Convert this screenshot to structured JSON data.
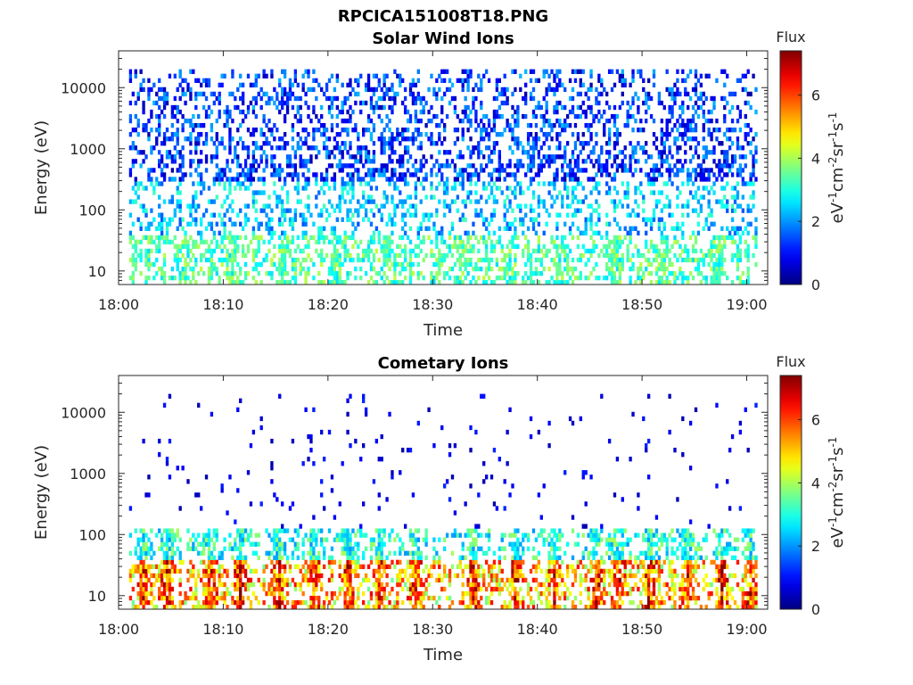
{
  "figure": {
    "suptitle": "RPCICA151008T18.PNG"
  },
  "colormap": "jet",
  "chart_data": [
    {
      "type": "heatmap",
      "title": "Solar Wind Ions",
      "xlabel": "Time",
      "ylabel": "Energy (eV)",
      "x_ticks": [
        "18:00",
        "18:10",
        "18:20",
        "18:30",
        "18:40",
        "18:50",
        "19:00"
      ],
      "x_range_minutes": [
        0,
        62
      ],
      "y_scale": "log",
      "y_ticks": [
        "10",
        "100",
        "1000",
        "10000"
      ],
      "y_tick_values": [
        10,
        100,
        1000,
        10000
      ],
      "ylim": [
        6,
        40000
      ],
      "colorbar": {
        "title": "Flux",
        "label_parts": [
          "eV",
          "-1",
          "cm",
          "-2",
          "sr",
          "-1",
          "s",
          "-1"
        ],
        "ticks": [
          "0",
          "2",
          "4",
          "6"
        ],
        "range": [
          0,
          7.4
        ]
      },
      "description_pattern": "sw",
      "bands": [
        {
          "energy_range": [
            6,
            40
          ],
          "flux_range": [
            2.5,
            4.2
          ]
        },
        {
          "energy_range": [
            40,
            300
          ],
          "flux_range": [
            1.5,
            3.3
          ]
        },
        {
          "energy_range": [
            300,
            20000
          ],
          "flux_range": [
            0.3,
            2.3
          ]
        }
      ]
    },
    {
      "type": "heatmap",
      "title": "Cometary Ions",
      "xlabel": "Time",
      "ylabel": "Energy (eV)",
      "x_ticks": [
        "18:00",
        "18:10",
        "18:20",
        "18:30",
        "18:40",
        "18:50",
        "19:00"
      ],
      "x_range_minutes": [
        0,
        62
      ],
      "y_scale": "log",
      "y_ticks": [
        "10",
        "100",
        "1000",
        "10000"
      ],
      "y_tick_values": [
        10,
        100,
        1000,
        10000
      ],
      "ylim": [
        6,
        40000
      ],
      "colorbar": {
        "title": "Flux",
        "label_parts": [
          "eV",
          "-1",
          "cm",
          "-2",
          "sr",
          "-1",
          "s",
          "-1"
        ],
        "ticks": [
          "0",
          "2",
          "4",
          "6"
        ],
        "range": [
          0,
          7.4
        ]
      },
      "description_pattern": "ci",
      "bursts_minutes": [
        2.3,
        4.5,
        8.6,
        11.5,
        15.2,
        18.6,
        21.8,
        24.8,
        28.2,
        33.8,
        37.8,
        41.5,
        45.5,
        47.6,
        50.6,
        54.2,
        57.5,
        60.2
      ],
      "bands": [
        {
          "energy_range": [
            6,
            40
          ],
          "flux_range": [
            3.5,
            6.5
          ]
        },
        {
          "energy_range": [
            40,
            130
          ],
          "flux_range": [
            2.0,
            4.0
          ]
        },
        {
          "energy_range": [
            130,
            30000
          ],
          "flux_range": [
            0.3,
            1.2
          ]
        }
      ]
    }
  ]
}
